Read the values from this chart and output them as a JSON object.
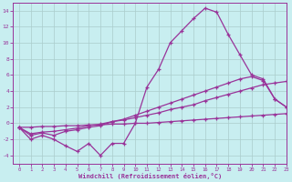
{
  "x": [
    0,
    1,
    2,
    3,
    4,
    5,
    6,
    7,
    8,
    9,
    10,
    11,
    12,
    13,
    14,
    15,
    16,
    17,
    18,
    19,
    20,
    21,
    22,
    23
  ],
  "curve_jagged": [
    -0.5,
    -2.0,
    -1.5,
    -2.0,
    -2.8,
    -3.5,
    -2.5,
    -4.0,
    -2.5,
    -2.5,
    0.0,
    4.5,
    6.7,
    10.0,
    11.5,
    13.0,
    14.3,
    13.8,
    11.0,
    8.5,
    6.0,
    5.5,
    3.0,
    2.0
  ],
  "curve_upper": [
    -0.5,
    -1.5,
    -1.2,
    -1.5,
    -1.0,
    -0.8,
    -0.5,
    -0.3,
    0.2,
    0.5,
    1.0,
    1.5,
    2.0,
    2.5,
    3.0,
    3.5,
    4.0,
    4.5,
    5.0,
    5.5,
    5.8,
    5.3,
    3.0,
    2.0
  ],
  "curve_mid": [
    -0.5,
    -1.3,
    -1.1,
    -1.0,
    -0.8,
    -0.6,
    -0.3,
    -0.1,
    0.2,
    0.4,
    0.7,
    1.0,
    1.3,
    1.7,
    2.0,
    2.3,
    2.8,
    3.2,
    3.6,
    4.0,
    4.4,
    4.8,
    5.0,
    5.2
  ],
  "curve_low": [
    -0.5,
    -0.5,
    -0.4,
    -0.4,
    -0.3,
    -0.3,
    -0.2,
    -0.2,
    -0.1,
    -0.1,
    0.0,
    0.0,
    0.1,
    0.2,
    0.3,
    0.4,
    0.5,
    0.6,
    0.7,
    0.8,
    0.9,
    1.0,
    1.1,
    1.2
  ],
  "ylim": [
    -5,
    15
  ],
  "xlim": [
    -0.5,
    23
  ],
  "yticks": [
    -4,
    -2,
    0,
    2,
    4,
    6,
    8,
    10,
    12,
    14
  ],
  "xticks": [
    0,
    1,
    2,
    3,
    4,
    5,
    6,
    7,
    8,
    9,
    10,
    11,
    12,
    13,
    14,
    15,
    16,
    17,
    18,
    19,
    20,
    21,
    22,
    23
  ],
  "xlabel": "Windchill (Refroidissement éolien,°C)",
  "line_color": "#993399",
  "bg_color": "#c8eef0",
  "grid_color": "#aacccc"
}
